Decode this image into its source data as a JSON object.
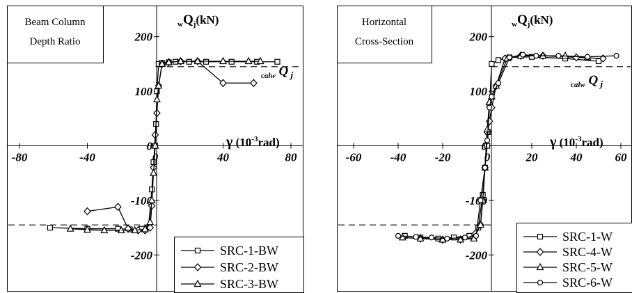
{
  "charts": [
    {
      "type": "line",
      "box_lines": [
        "Beam Column",
        "Depth Ratio"
      ],
      "y_title": {
        "main": "Q",
        "pre_sub": "w",
        "sub": "j",
        "unit": "(kN)"
      },
      "x_title": {
        "sym": "γ",
        "open": "(10",
        "sup": "-3",
        "unit": "rad)"
      },
      "ref_label": {
        "pre_sub": "calw",
        "main": "Q",
        "sub": "j"
      },
      "ref_value": 145,
      "xlim": [
        -80,
        80
      ],
      "ylim": [
        -220,
        220
      ],
      "x_ticks": [
        {
          "v": -80,
          "t": "-80"
        },
        {
          "v": -40,
          "t": "-40"
        },
        {
          "v": 0,
          "t": "0"
        },
        {
          "v": 40,
          "t": "40"
        },
        {
          "v": 80,
          "t": "80"
        }
      ],
      "y_ticks": [
        {
          "v": 200,
          "t": "200"
        },
        {
          "v": 100,
          "t": "100"
        },
        {
          "v": 0,
          "t": "0"
        },
        {
          "v": -100,
          "t": "-100"
        },
        {
          "v": -200,
          "t": "-200"
        }
      ],
      "series": [
        {
          "name": "SRC-1-BW",
          "marker": "square",
          "x": [
            -62,
            -40,
            -22,
            -15,
            -8,
            -4,
            -2,
            -1,
            0,
            0.5,
            1,
            2,
            4,
            8,
            12,
            20,
            30,
            45,
            60,
            72
          ],
          "y": [
            -150,
            -152,
            -152,
            -153,
            -152,
            -150,
            -80,
            -30,
            0,
            40,
            100,
            150,
            152,
            153,
            154,
            154,
            154,
            154,
            154,
            154
          ]
        },
        {
          "name": "SRC-2-BW",
          "marker": "diamond",
          "x": [
            -40,
            -22,
            -16,
            -10,
            -6,
            -3,
            -2,
            -1,
            0,
            1,
            2,
            4,
            8,
            15,
            25,
            40,
            58
          ],
          "y": [
            -120,
            -112,
            -152,
            -155,
            -155,
            -150,
            -110,
            -40,
            20,
            60,
            110,
            150,
            153,
            155,
            155,
            115,
            115
          ]
        },
        {
          "name": "SRC-3-BW",
          "marker": "triangle",
          "x": [
            -50,
            -40,
            -30,
            -20,
            -12,
            -6,
            -3,
            -2,
            -1,
            0,
            1,
            2,
            4,
            8,
            15,
            25,
            40,
            55,
            62
          ],
          "y": [
            -152,
            -154,
            -155,
            -155,
            -155,
            -153,
            -140,
            -100,
            -50,
            0,
            85,
            110,
            150,
            153,
            155,
            155,
            155,
            155,
            155
          ]
        }
      ]
    },
    {
      "type": "line",
      "box_lines": [
        "Horizontal",
        "Cross-Section"
      ],
      "y_title": {
        "main": "Q",
        "pre_sub": "w",
        "sub": "j",
        "unit": "(kN)"
      },
      "x_title": {
        "sym": "γ",
        "open": "(10",
        "sup": "-3",
        "unit": "rad)"
      },
      "ref_label": {
        "pre_sub": "calw",
        "main": "Q",
        "sub": "j"
      },
      "ref_value": 145,
      "xlim": [
        -60,
        60
      ],
      "ylim": [
        -220,
        220
      ],
      "x_ticks": [
        {
          "v": -60,
          "t": "-60"
        },
        {
          "v": -40,
          "t": "-40"
        },
        {
          "v": -20,
          "t": "-20"
        },
        {
          "v": 0,
          "t": "0"
        },
        {
          "v": 20,
          "t": "20"
        },
        {
          "v": 40,
          "t": "40"
        },
        {
          "v": 60,
          "t": "60"
        }
      ],
      "y_ticks": [
        {
          "v": 200,
          "t": "200"
        },
        {
          "v": 100,
          "t": "100"
        },
        {
          "v": 0,
          "t": "0"
        },
        {
          "v": -100,
          "t": "-100"
        },
        {
          "v": -200,
          "t": "-200"
        }
      ],
      "series": [
        {
          "name": "SRC-1-W",
          "marker": "square",
          "x": [
            -37,
            -30,
            -22,
            -15,
            -8,
            -4,
            -2,
            -1,
            0,
            0.5,
            1,
            2,
            5,
            10,
            20,
            35,
            50
          ],
          "y": [
            -165,
            -168,
            -170,
            -168,
            -165,
            -150,
            -90,
            -40,
            0,
            25,
            75,
            150,
            157,
            162,
            163,
            160,
            155
          ]
        },
        {
          "name": "SRC-4-W",
          "marker": "diamond",
          "x": [
            -30,
            -20,
            -12,
            -6,
            -3,
            -2,
            -1,
            0,
            1,
            2,
            4,
            8,
            15,
            25,
            40,
            52
          ],
          "y": [
            -170,
            -172,
            -172,
            -168,
            -145,
            -100,
            -40,
            25,
            45,
            70,
            110,
            160,
            165,
            165,
            162,
            160
          ]
        },
        {
          "name": "SRC-5-W",
          "marker": "triangle",
          "x": [
            -38,
            -30,
            -20,
            -12,
            -6,
            -3,
            -2,
            -1,
            0,
            1,
            2,
            4,
            9,
            15,
            25,
            35,
            45
          ],
          "y": [
            -168,
            -170,
            -172,
            -172,
            -170,
            -145,
            -100,
            -40,
            30,
            80,
            90,
            110,
            160,
            165,
            165,
            165,
            162
          ]
        },
        {
          "name": "SRC-6-W",
          "marker": "circle",
          "x": [
            -40,
            -32,
            -25,
            -18,
            -10,
            -5,
            -3,
            -1,
            0,
            1,
            2,
            5,
            10,
            16,
            22,
            32,
            45,
            58
          ],
          "y": [
            -165,
            -167,
            -168,
            -170,
            -168,
            -165,
            -100,
            -40,
            10,
            70,
            90,
            115,
            162,
            167,
            165,
            165,
            163,
            165
          ]
        }
      ]
    }
  ]
}
